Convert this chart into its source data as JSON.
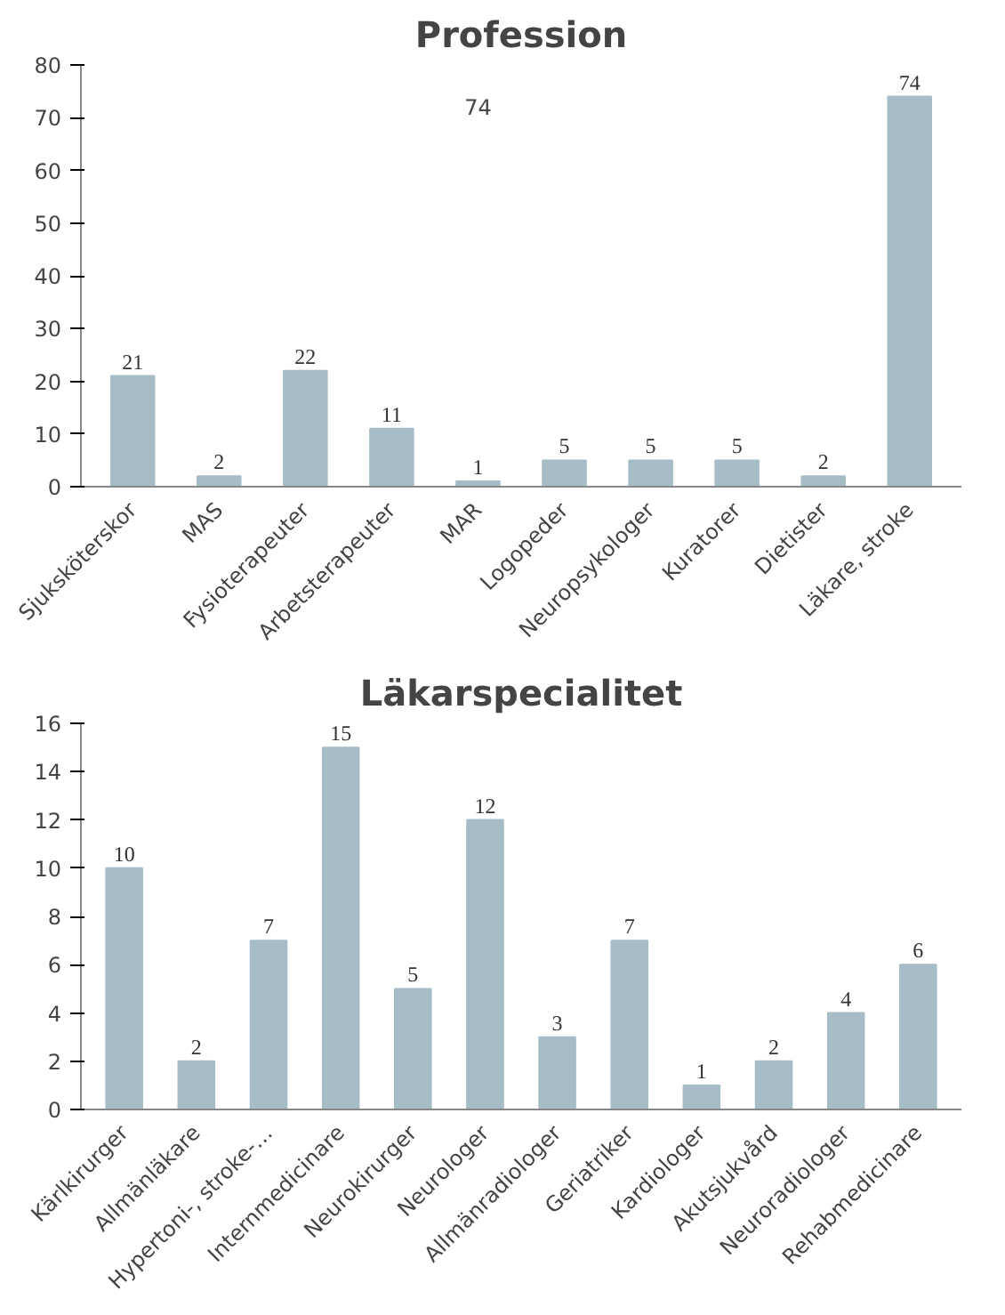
{
  "chart_data": [
    {
      "type": "bar",
      "title": "Profession",
      "categories": [
        "Sjuksköterskor",
        "MAS",
        "Fysioterapeuter",
        "Arbetsterapeuter",
        "MAR",
        "Logopeder",
        "Neuropsykologer",
        "Kuratorer",
        "Dietister",
        "Läkare, stroke"
      ],
      "values": [
        21,
        2,
        22,
        11,
        1,
        5,
        5,
        5,
        2,
        74
      ],
      "color": "#a6bcc6",
      "ylim": [
        0,
        80
      ],
      "yticks": [
        0,
        10,
        20,
        30,
        40,
        50,
        60,
        70,
        80
      ],
      "grid": false,
      "data_labels": true,
      "annotations": [
        "74"
      ]
    },
    {
      "type": "bar",
      "title": "Läkarspecialitet",
      "categories": [
        "Kärlkirurger",
        "Allmänläkare",
        "Hypertoni-, stroke-…",
        "Internmedicinare",
        "Neurokirurger",
        "Neurologer",
        "Allmänradiologer",
        "Geriatriker",
        "Kardiologer",
        "Akutsjukvård",
        "Neuroradiologer",
        "Rehabmedicinare"
      ],
      "values": [
        10,
        2,
        7,
        15,
        5,
        12,
        3,
        7,
        1,
        2,
        4,
        6
      ],
      "color": "#a6bcc6",
      "ylim": [
        0,
        16
      ],
      "yticks": [
        0,
        2,
        4,
        6,
        8,
        10,
        12,
        14,
        16
      ],
      "grid": false,
      "data_labels": true
    }
  ]
}
